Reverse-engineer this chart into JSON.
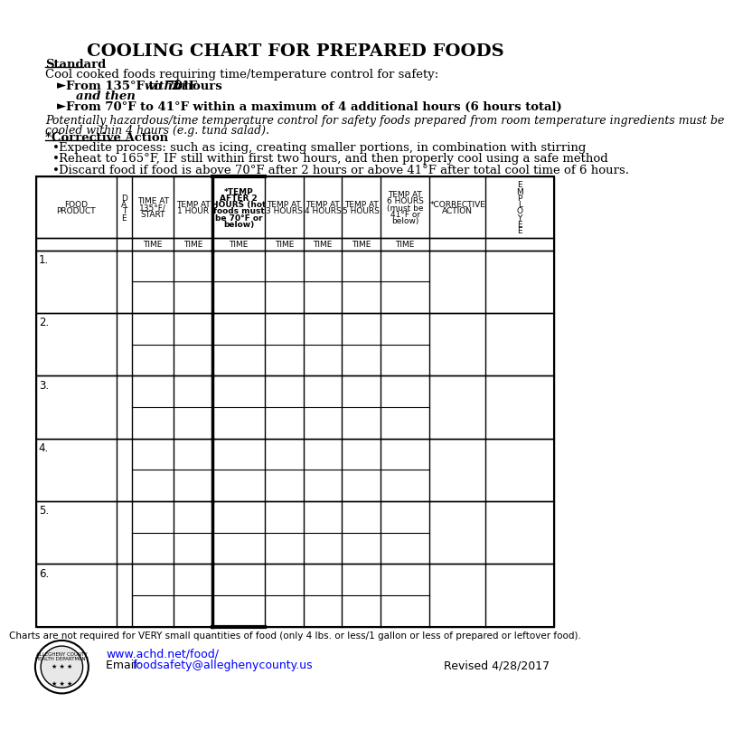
{
  "title": "COOLING CHART FOR PREPARED FOODS",
  "standard_label": "Standard",
  "standard_line1": "Cool cooked foods requiring time/temperature control for safety:",
  "bullet1_normal": "From 135°F to 70°F ",
  "bullet1_italic": "within",
  "bullet1_end": " 2 hours",
  "bullet1b_italic": "and then",
  "bullet2": "From 70°F to 41°F within a maximum of 4 additional hours (6 hours total)",
  "italic_note": "Potentially hazardous/time temperature control for safety foods prepared from room temperature ingredients must be\ncooled within 4 hours (e.g. tuna salad).",
  "corrective_label": "*Corrective Action",
  "ca_bullet1": "Expedite process: such as icing, creating smaller portions, in combination with stirring",
  "ca_bullet2": "Reheat to 165°F, IF still within first two hours, and then properly cool using a safe method",
  "ca_bullet3": "Discard food if food is above 70°F after 2 hours or above 41°F after total cool time of 6 hours.",
  "col_headers": [
    "FOOD\nPRODUCT",
    "D\nA\nT\nE",
    "TIME AT\n135°F/\nSTART",
    "TEMP AT\n1 HOUR",
    "*TEMP\nAFTER 2\nHOURS (hot\nfoods must\nbe 70°F or\nbelow)",
    "TEMP AT\n3 HOURS",
    "TEMP AT\n4 HOURS",
    "TEMP AT\n5 HOURS",
    "TEMP AT\n6 HOURS\n(must be\n41°F or\nbelow)",
    "*CORRECTIVE\nACTION",
    "E\nM\nP\nL\nO\nY\nE\nE"
  ],
  "time_row": [
    "",
    "",
    "TIME",
    "TIME",
    "TIME",
    "TIME",
    "TIME",
    "TIME",
    "TIME",
    "",
    ""
  ],
  "rows": 6,
  "footer_note": "Charts are not required for VERY small quantities of food (only 4 lbs. or less/1 gallon or less of prepared or leftover food).",
  "website": "www.achd.net/food/",
  "email": "foodsafety@alleghenycounty.us",
  "revised": "Revised 4/28/2017",
  "bg_color": "#ffffff",
  "text_color": "#000000"
}
